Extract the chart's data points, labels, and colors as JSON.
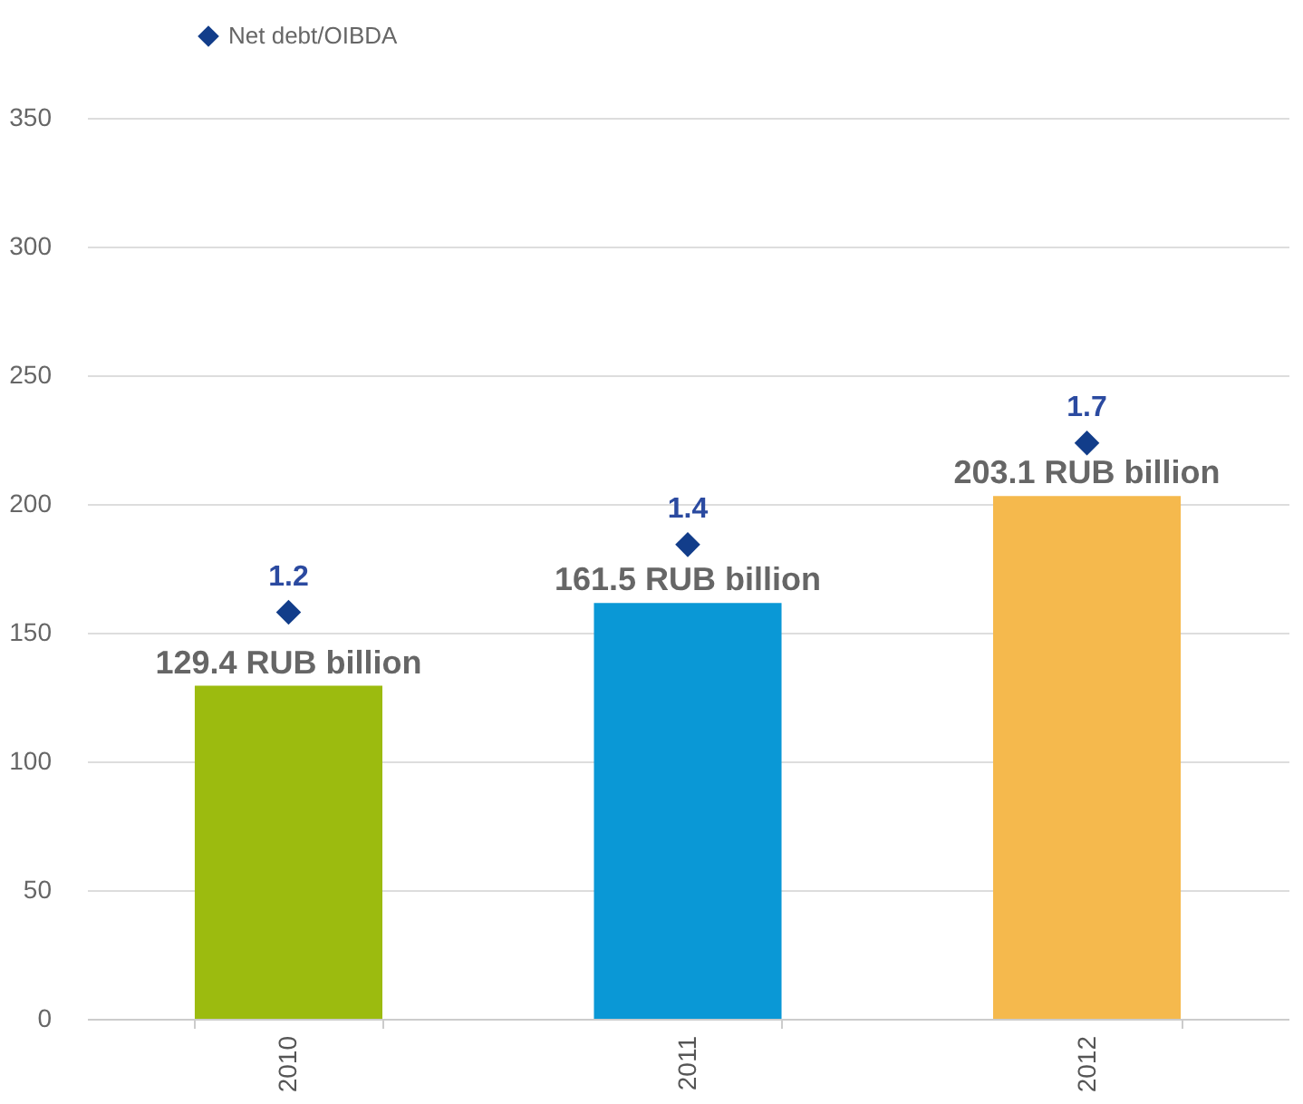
{
  "chart_data": {
    "type": "bar",
    "categories": [
      "2010",
      "2011",
      "2012"
    ],
    "series": [
      {
        "colors": [
          "#9cbb0f",
          "#0a98d6",
          "#f5b94d"
        ],
        "values": [
          129.4,
          161.5,
          203.1
        ],
        "value_labels": [
          "129.4 RUB billion",
          "161.5 RUB billion",
          "203.1 RUB billion"
        ]
      },
      {
        "type": "scatter",
        "name": "Net debt/OIBDA",
        "color": "#123d8a",
        "axis": "y2",
        "marker": "diamond",
        "values": [
          1.2,
          1.4,
          1.7
        ],
        "value_labels": [
          "1.2",
          "1.4",
          "1.7"
        ]
      }
    ],
    "ylim": [
      0,
      350
    ],
    "yticks": [
      0,
      50,
      100,
      150,
      200,
      250,
      300,
      350
    ],
    "y2lim": [
      0,
      2.66
    ],
    "grid": "y",
    "legend": "top left"
  }
}
